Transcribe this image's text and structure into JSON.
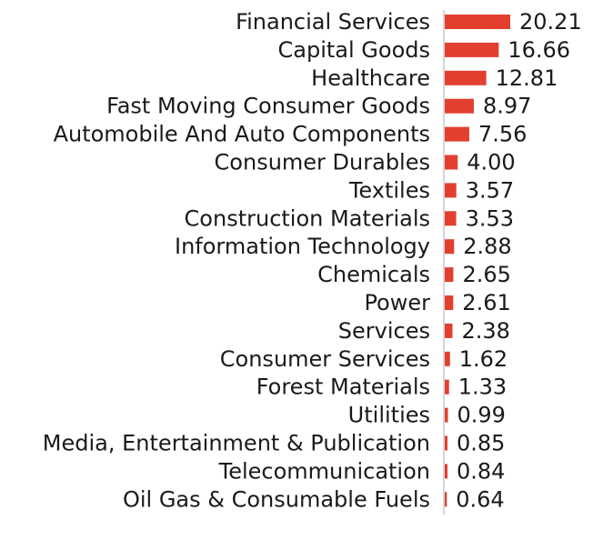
{
  "chart_data": {
    "type": "bar",
    "orientation": "horizontal",
    "title": "",
    "xlabel": "",
    "ylabel": "",
    "categories": [
      "Financial Services",
      "Capital Goods",
      "Healthcare",
      "Fast Moving Consumer Goods",
      "Automobile And Auto Components",
      "Consumer Durables",
      "Textiles",
      "Construction Materials",
      "Information Technology",
      "Chemicals",
      "Power",
      "Services",
      "Consumer Services",
      "Forest Materials",
      "Utilities",
      "Media, Entertainment & Publication",
      "Telecommunication",
      "Oil Gas & Consumable Fuels"
    ],
    "values": [
      20.21,
      16.66,
      12.81,
      8.97,
      7.56,
      4.0,
      3.57,
      3.53,
      2.88,
      2.65,
      2.61,
      2.38,
      1.62,
      1.33,
      0.99,
      0.85,
      0.84,
      0.64
    ],
    "value_labels": [
      "20.21",
      "16.66",
      "12.81",
      "8.97",
      "7.56",
      "4.00",
      "3.57",
      "3.53",
      "2.88",
      "2.65",
      "2.61",
      "2.38",
      "1.62",
      "1.33",
      "0.99",
      "0.85",
      "0.84",
      "0.64"
    ],
    "xlim": [
      0,
      20.21
    ],
    "bar_color": "#e23f2f",
    "axis_color": "#c8c8c8",
    "grid": false,
    "legend": "none"
  }
}
